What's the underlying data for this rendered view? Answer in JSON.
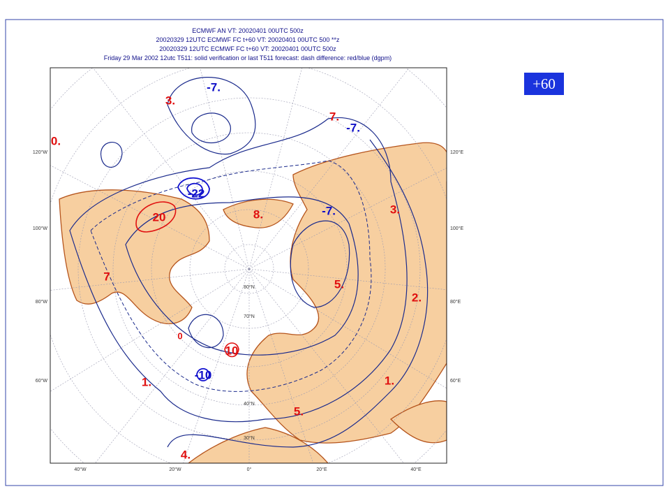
{
  "header": {
    "lines": [
      "ECMWF AN VT: 20020401 00UTC 500z",
      "20020329 12UTC ECMWF FC t+60 VT: 20020401 00UTC 500 **z",
      "20020329 12UTC ECMWF FC t+60 VT: 20020401 00UTC 500z",
      "Friday 29 Mar 2002 12utc T511: solid    verification or last T511 forecast: dash    difference: red/blue (dgpm)"
    ]
  },
  "badge": "+60",
  "map": {
    "lon_left": [
      "120°W",
      "100°W",
      "80°W",
      "60°W"
    ],
    "lon_right": [
      "120°E",
      "100°E",
      "80°E",
      "60°E"
    ],
    "lon_bottom": [
      "40°W",
      "20°W",
      "0°",
      "20°E",
      "40°E"
    ],
    "lat": [
      "80°N",
      "70°N",
      "40°N",
      "30°N"
    ],
    "red_labels": [
      "3.",
      "0.",
      "7.",
      "20",
      "8.",
      "3.",
      "7",
      "5.",
      "2.",
      "10",
      "1.",
      "1.",
      "5.",
      "4.",
      "0"
    ],
    "blue_labels": [
      "-7.",
      "-7.",
      "-22",
      "-7.",
      "-10"
    ]
  }
}
